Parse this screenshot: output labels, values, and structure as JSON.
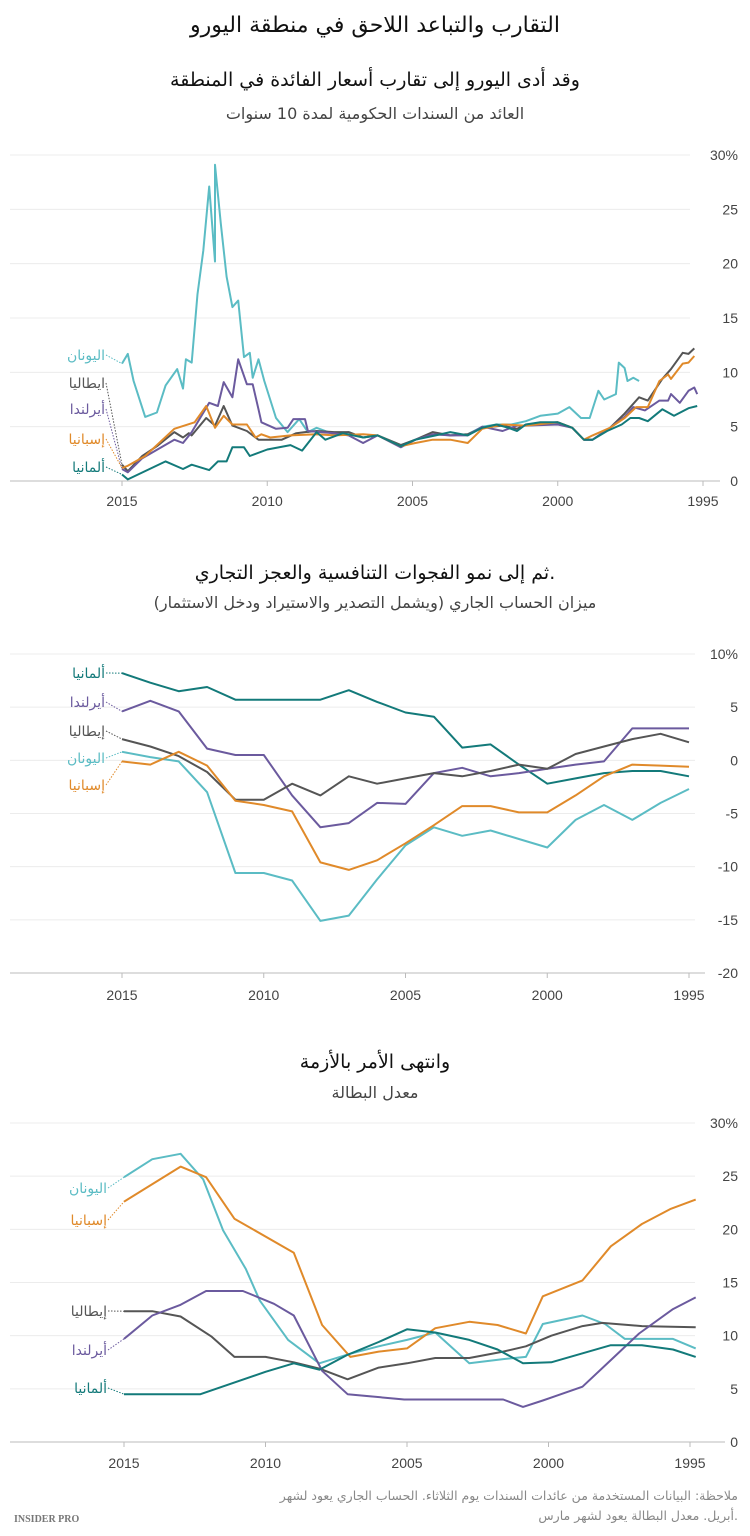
{
  "title": "التقارب والتباعد اللاحق في منطقة اليورو",
  "note_line1": "ملاحظة: البيانات المستخدمة من عائدات السندات يوم الثلاثاء. الحساب الجاري يعود لشهر",
  "note_line2": "أبريل. معدل البطالة يعود لشهر مارس.",
  "logo": "INSIDER PRO",
  "colors": {
    "greece": "#5bbcc4",
    "italy": "#555555",
    "ireland": "#6b5a9e",
    "spain": "#e08a2a",
    "germany": "#137a7a"
  },
  "chart_data": [
    {
      "type": "line",
      "title": "وقد أدى اليورو إلى تقارب أسعار الفائدة في المنطقة",
      "subtitle": "العائد من السندات الحكومية لمدة 10 سنوات",
      "x_ticks": [
        "2015",
        "2010",
        "2005",
        "2000",
        "1995"
      ],
      "x_reversed": true,
      "y_ticks": [
        "30%",
        "25",
        "20",
        "15",
        "10",
        "5",
        "0"
      ],
      "ylim": [
        0,
        30
      ],
      "grid": true,
      "series": [
        {
          "key": "greece",
          "name": "اليونان",
          "x": [
            2015,
            2014.8,
            2014.6,
            2014.2,
            2013.8,
            2013.5,
            2013.1,
            2012.9,
            2012.8,
            2012.6,
            2012.4,
            2012.2,
            2012,
            2011.8,
            2011.8,
            2011.6,
            2011.4,
            2011.2,
            2011,
            2010.8,
            2010.6,
            2010.5,
            2010.3,
            2010.1,
            2009.7,
            2009.3,
            2008.9,
            2008.6,
            2008.3,
            2007.7,
            2007.2,
            2006.7,
            2006.2,
            2005.4,
            2004.9,
            2004.2,
            2003.7,
            2003.1,
            2002.6,
            2002.1,
            2001.6,
            2001.1,
            2000.6,
            2000,
            1999.6,
            1999.2,
            1998.9,
            1998.6,
            1998.4,
            1998,
            1997.9,
            1997.7,
            1997.6,
            1997.4,
            1997.2
          ],
          "y": [
            10.8,
            11.7,
            9.2,
            5.9,
            6.3,
            8.8,
            10.3,
            8.5,
            11.2,
            10.9,
            17.2,
            21.2,
            27.1,
            20.2,
            29.1,
            23.7,
            18.8,
            16,
            16.6,
            11.4,
            11.8,
            9.5,
            11.2,
            9.2,
            5.8,
            4.5,
            5.7,
            4.5,
            4.9,
            4.3,
            4.5,
            4.0,
            4.2,
            3.3,
            3.8,
            4.3,
            4.2,
            4.3,
            5.0,
            5.2,
            5.2,
            5.5,
            6.0,
            6.2,
            6.8,
            5.8,
            5.8,
            8.3,
            7.5,
            8.0,
            10.9,
            10.4,
            9.2,
            9.5,
            9.2
          ]
        },
        {
          "key": "italy",
          "name": "ايطاليا",
          "x": [
            2015,
            2014.8,
            2014.3,
            2013.8,
            2013.2,
            2012.9,
            2012.7,
            2012.6,
            2012.1,
            2011.8,
            2011.5,
            2011.2,
            2010.7,
            2010.3,
            2009.5,
            2009,
            2008.7,
            2008.3,
            2007.7,
            2007.2,
            2006.7,
            2006.2,
            2005.4,
            2004.9,
            2004.3,
            2003.7,
            2003.1,
            2002.6,
            2001.9,
            2001.4,
            2001.1,
            2000,
            1999.5,
            1999.1,
            1998.8,
            1998.2,
            1997.7,
            1997.2,
            1996.9,
            1996.4,
            1996.1,
            1995.7,
            1995.5,
            1995.3
          ],
          "y": [
            1.5,
            0.9,
            2.3,
            3.2,
            4.5,
            4.0,
            4.4,
            4.2,
            5.8,
            5.1,
            6.9,
            5.1,
            4.6,
            3.8,
            3.8,
            4.4,
            4.5,
            4.6,
            4.5,
            4.5,
            4.0,
            4.2,
            3.3,
            3.8,
            4.5,
            4.2,
            4.3,
            4.9,
            5.1,
            4.8,
            5.2,
            5.4,
            4.9,
            3.8,
            3.8,
            4.9,
            6.2,
            7.7,
            7.4,
            9.4,
            10.3,
            11.8,
            11.7,
            12.2
          ]
        },
        {
          "key": "ireland",
          "name": "أيرلندا",
          "x": [
            2015,
            2014.8,
            2014.3,
            2013.2,
            2012.9,
            2012.6,
            2012,
            2011.7,
            2011.5,
            2011.2,
            2011,
            2010.7,
            2010.5,
            2010.3,
            2010.2,
            2009.7,
            2009.3,
            2009.1,
            2008.7,
            2008.6,
            2007.7,
            2007.2,
            2006.7,
            2006.2,
            2005.4,
            2004.9,
            2004.3,
            2003.7,
            2003.1,
            2002.6,
            2001.9,
            2001.4,
            2001.1,
            2000,
            1999.5,
            1999.1,
            1998.8,
            1998.2,
            1997.7,
            1997.4,
            1997,
            1996.5,
            1996.2,
            1996.1,
            1995.8,
            1995.5,
            1995.3,
            1995.2
          ],
          "y": [
            1.1,
            0.8,
            2.1,
            3.8,
            3.5,
            4.5,
            7.2,
            6.9,
            9.1,
            7.7,
            11.2,
            8.9,
            8.9,
            6.6,
            5.4,
            4.8,
            4.9,
            5.7,
            5.7,
            4.6,
            4.4,
            4.2,
            3.5,
            4.2,
            3.1,
            3.8,
            4.3,
            4.2,
            4.2,
            5.0,
            4.6,
            5.1,
            5.1,
            5.2,
            4.9,
            3.8,
            3.8,
            4.9,
            5.9,
            6.8,
            6.5,
            7.4,
            7.4,
            8.0,
            7.2,
            8.3,
            8.6,
            8.0
          ]
        },
        {
          "key": "spain",
          "name": "إسبانيا",
          "x": [
            2015,
            2014.8,
            2014.2,
            2013.2,
            2012.5,
            2012.1,
            2011.8,
            2011.5,
            2011.2,
            2010.7,
            2010.4,
            2010.2,
            2009.9,
            2009.2,
            2008.3,
            2007.7,
            2006.7,
            2006.2,
            2005.4,
            2004.9,
            2004.3,
            2003.7,
            2003.1,
            2002.6,
            2001.9,
            2001.1,
            2000,
            1999.5,
            1999.1,
            1998.8,
            1998.2,
            1997.7,
            1997.3,
            1996.9,
            1996.5,
            1996.2,
            1996.1,
            1995.7,
            1995.5,
            1995.3
          ],
          "y": [
            1.2,
            1.4,
            2.3,
            4.8,
            5.4,
            6.9,
            4.9,
            6.0,
            5.2,
            5.2,
            4.0,
            4.3,
            4.0,
            4.2,
            4.3,
            4.2,
            4.3,
            4.2,
            3.2,
            3.5,
            3.8,
            3.8,
            3.5,
            4.8,
            5.2,
            5.1,
            5.4,
            4.9,
            3.8,
            4.2,
            4.9,
            5.8,
            6.8,
            6.8,
            9.2,
            9.8,
            9.4,
            10.8,
            10.9,
            11.5
          ]
        },
        {
          "key": "germany",
          "name": "ألمانيا",
          "x": [
            2015,
            2014.8,
            2013.5,
            2012.9,
            2012.6,
            2012,
            2011.7,
            2011.4,
            2011.2,
            2010.8,
            2010.6,
            2010,
            2009.2,
            2008.8,
            2008.3,
            2008,
            2007.4,
            2006.7,
            2006.2,
            2005.4,
            2004.9,
            2004.2,
            2003.7,
            2003.1,
            2002.6,
            2002.1,
            2001.7,
            2001.4,
            2001.1,
            2000.6,
            2000,
            1999.5,
            1999.1,
            1998.8,
            1998.3,
            1997.8,
            1997.5,
            1997.2,
            1996.9,
            1996.4,
            1996,
            1995.5,
            1995.2
          ],
          "y": [
            0.6,
            0.15,
            1.8,
            1.1,
            1.5,
            1.0,
            1.8,
            1.8,
            3.1,
            3.1,
            2.3,
            2.9,
            3.3,
            2.8,
            4.5,
            3.8,
            4.4,
            4.0,
            4.2,
            3.2,
            3.8,
            4.2,
            4.5,
            4.2,
            4.9,
            5.2,
            4.9,
            4.6,
            5.2,
            5.4,
            5.4,
            4.9,
            3.8,
            3.8,
            4.6,
            5.2,
            5.8,
            5.8,
            5.5,
            6.6,
            6.0,
            6.7,
            6.9
          ]
        }
      ]
    },
    {
      "type": "line",
      "title": "ثم إلى نمو الفجوات التنافسية والعجز التجاري.",
      "subtitle": "ميزان الحساب الجاري (ويشمل التصدير والاستيراد ودخل الاستثمار)",
      "x_ticks": [
        "2015",
        "2010",
        "2005",
        "2000",
        "1995"
      ],
      "x_reversed": true,
      "y_ticks": [
        "10%",
        "5",
        "0",
        "-5",
        "-10",
        "-15",
        "-20"
      ],
      "ylim": [
        -20,
        10
      ],
      "grid": true,
      "series": [
        {
          "key": "germany",
          "name": "ألمانيا",
          "x": [
            2015,
            2014,
            2013,
            2012,
            2011,
            2010,
            2009,
            2008,
            2007,
            2006,
            2005,
            2004,
            2003,
            2002,
            2001,
            2000,
            1999,
            1998,
            1997,
            1996,
            1995
          ],
          "y": [
            8.2,
            7.3,
            6.5,
            6.9,
            5.7,
            5.7,
            5.7,
            5.7,
            6.6,
            5.5,
            4.5,
            4.1,
            1.2,
            1.5,
            -0.4,
            -2.2,
            -1.7,
            -1.2,
            -1.0,
            -1.0,
            -1.5
          ]
        },
        {
          "key": "ireland",
          "name": "أيرلندا",
          "x": [
            2015,
            2014,
            2013,
            2012,
            2011,
            2010,
            2009,
            2008,
            2007,
            2006,
            2005,
            2004,
            2003,
            2002,
            2001,
            2000,
            1999,
            1998,
            1997,
            1996,
            1995
          ],
          "y": [
            4.6,
            5.6,
            4.6,
            1.1,
            0.5,
            0.5,
            -3.3,
            -6.3,
            -5.9,
            -4.0,
            -4.1,
            -1.2,
            -0.7,
            -1.5,
            -1.2,
            -0.8,
            -0.4,
            -0.1,
            3.0,
            3.0,
            3.0
          ]
        },
        {
          "key": "italy",
          "name": "إيطاليا",
          "x": [
            2015,
            2014,
            2013,
            2012,
            2011,
            2010,
            2009,
            2008,
            2007,
            2006,
            2005,
            2004,
            2003,
            2002,
            2001,
            2000,
            1999,
            1998,
            1997,
            1996,
            1995
          ],
          "y": [
            2.0,
            1.3,
            0.4,
            -1.1,
            -3.7,
            -3.7,
            -2.2,
            -3.3,
            -1.5,
            -2.2,
            -1.7,
            -1.2,
            -1.5,
            -1.0,
            -0.4,
            -0.8,
            0.6,
            1.3,
            2.0,
            2.5,
            1.7
          ]
        },
        {
          "key": "greece",
          "name": "اليونان",
          "x": [
            2015,
            2014,
            2013,
            2012,
            2011,
            2010,
            2009,
            2008,
            2007,
            2006,
            2005,
            2004,
            2003,
            2002,
            2001,
            2000,
            1999,
            1998,
            1997,
            1996,
            1995
          ],
          "y": [
            0.8,
            0.3,
            -0.1,
            -3.0,
            -10.6,
            -10.6,
            -11.3,
            -15.1,
            -14.6,
            -11.2,
            -8.0,
            -6.3,
            -7.1,
            -6.6,
            -7.4,
            -8.2,
            -5.6,
            -4.2,
            -5.6,
            -4.0,
            -2.7
          ]
        },
        {
          "key": "spain",
          "name": "إسبانيا",
          "x": [
            2015,
            2014,
            2013,
            2012,
            2011,
            2010,
            2009,
            2008,
            2007,
            2006,
            2005,
            2004,
            2003,
            2002,
            2001,
            2000,
            1999,
            1998,
            1997,
            1996,
            1995
          ],
          "y": [
            -0.1,
            -0.4,
            0.8,
            -0.5,
            -3.8,
            -4.2,
            -4.8,
            -9.6,
            -10.3,
            -9.4,
            -7.8,
            -6.1,
            -4.3,
            -4.3,
            -4.9,
            -4.9,
            -3.3,
            -1.5,
            -0.4,
            -0.5,
            -0.6
          ]
        }
      ]
    },
    {
      "type": "line",
      "title": "وانتهى الأمر بالأزمة",
      "subtitle": "معدل البطالة",
      "x_ticks": [
        "2015",
        "2010",
        "2005",
        "2000",
        "1995"
      ],
      "x_reversed": true,
      "y_ticks": [
        "30%",
        "25",
        "20",
        "15",
        "10",
        "5",
        "0"
      ],
      "ylim": [
        0,
        30
      ],
      "grid": true,
      "series": [
        {
          "key": "greece",
          "name": "اليونان",
          "x": [
            2015,
            2014,
            2013,
            2012.2,
            2011.5,
            2010.7,
            2010.2,
            2009.2,
            2008.1,
            2007,
            2006,
            2005,
            2004,
            2002.8,
            2001.6,
            2000.8,
            2000.2,
            1998.8,
            1998,
            1997.3,
            1995.6,
            1994.8
          ],
          "y": [
            24.9,
            26.6,
            27.1,
            24.7,
            19.9,
            16.3,
            13.3,
            9.6,
            7.4,
            8.3,
            9.0,
            9.6,
            10.3,
            7.4,
            7.8,
            8.0,
            11.1,
            11.9,
            11.1,
            9.7,
            9.7,
            8.8
          ]
        },
        {
          "key": "spain",
          "name": "إسبانيا",
          "x": [
            2015,
            2013,
            2012.1,
            2011.1,
            2009,
            2008,
            2007,
            2006,
            2005,
            2004,
            2002.8,
            2001.8,
            2000.8,
            2000.2,
            1998.8,
            1997.8,
            1996.7,
            1995.7,
            1994.8
          ],
          "y": [
            22.6,
            25.9,
            24.9,
            21.0,
            17.8,
            11.0,
            8.0,
            8.5,
            8.8,
            10.7,
            11.3,
            11.0,
            10.2,
            13.7,
            15.2,
            18.4,
            20.5,
            21.9,
            22.8
          ]
        },
        {
          "key": "italy",
          "name": "إيطاليا",
          "x": [
            2015,
            2014,
            2013,
            2011.9,
            2011.1,
            2010,
            2009,
            2008.1,
            2007.1,
            2006,
            2005,
            2004,
            2002.8,
            2001.6,
            2000.8,
            1999.9,
            1998.8,
            1998.1,
            1996.7,
            1994.8
          ],
          "y": [
            12.3,
            12.3,
            11.8,
            9.9,
            8.0,
            8.0,
            7.5,
            6.9,
            5.9,
            7.0,
            7.4,
            7.9,
            7.9,
            8.5,
            9.0,
            10.0,
            10.9,
            11.2,
            10.9,
            10.8
          ]
        },
        {
          "key": "ireland",
          "name": "أيرلندا",
          "x": [
            2015,
            2014,
            2013,
            2012.1,
            2010.8,
            2009.7,
            2009,
            2008,
            2007.1,
            2005.1,
            2001.6,
            2000.9,
            2000.2,
            1998.8,
            1997.8,
            1996.8,
            1995.6,
            1994.8
          ],
          "y": [
            9.7,
            11.9,
            12.9,
            14.2,
            14.2,
            13.0,
            11.9,
            6.7,
            4.5,
            4.0,
            4.0,
            3.3,
            3.9,
            5.2,
            7.7,
            10.2,
            12.5,
            13.6
          ]
        },
        {
          "key": "germany",
          "name": "ألمانيا",
          "x": [
            2015,
            2012.3,
            2010,
            2009,
            2008.1,
            2007.1,
            2006,
            2005,
            2004,
            2002.8,
            2001.8,
            2000.9,
            1999.9,
            1997.8,
            1996.7,
            1995.6,
            1994.8
          ],
          "y": [
            4.5,
            4.5,
            6.6,
            7.4,
            6.8,
            8.2,
            9.4,
            10.6,
            10.3,
            9.6,
            8.7,
            7.4,
            7.5,
            9.1,
            9.1,
            8.7,
            8.0
          ]
        }
      ]
    }
  ]
}
